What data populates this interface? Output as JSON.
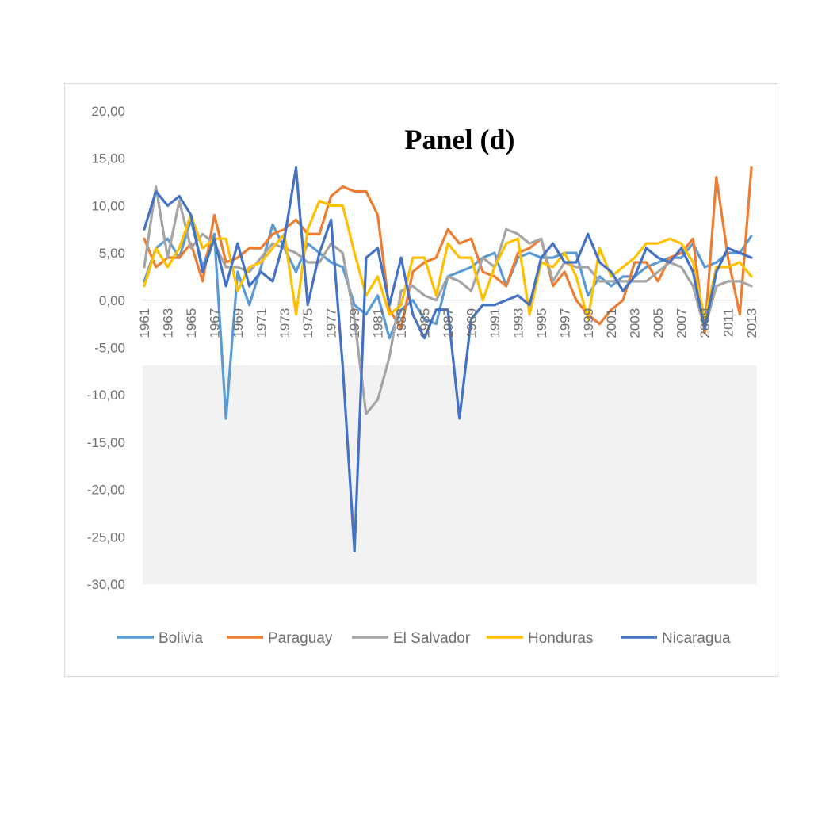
{
  "chart_data": {
    "type": "line",
    "title": "Panel (d)",
    "xlabel": "",
    "ylabel": "",
    "ylim": [
      -30,
      20
    ],
    "y_ticks": [
      "20,00",
      "15,00",
      "10,00",
      "5,00",
      "0,00",
      "-5,00",
      "-10,00",
      "-15,00",
      "-20,00",
      "-25,00",
      "-30,00"
    ],
    "y_tick_values": [
      20,
      15,
      10,
      5,
      0,
      -5,
      -10,
      -15,
      -20,
      -25,
      -30
    ],
    "x_tick_labels": [
      "1961",
      "1963",
      "1965",
      "1967",
      "1969",
      "1971",
      "1973",
      "1975",
      "1977",
      "1979",
      "1981",
      "1983",
      "1985",
      "1987",
      "1989",
      "1991",
      "1993",
      "1995",
      "1997",
      "1999",
      "2001",
      "2003",
      "2005",
      "2007",
      "2009",
      "2011",
      "2013"
    ],
    "x": [
      1961,
      1962,
      1963,
      1964,
      1965,
      1966,
      1967,
      1968,
      1969,
      1970,
      1971,
      1972,
      1973,
      1974,
      1975,
      1976,
      1977,
      1978,
      1979,
      1980,
      1981,
      1982,
      1983,
      1984,
      1985,
      1986,
      1987,
      1988,
      1989,
      1990,
      1991,
      1992,
      1993,
      1994,
      1995,
      1996,
      1997,
      1998,
      1999,
      2000,
      2001,
      2002,
      2003,
      2004,
      2005,
      2006,
      2007,
      2008,
      2009,
      2010,
      2011,
      2012,
      2013
    ],
    "grid": false,
    "legend_position": "bottom",
    "series": [
      {
        "name": "Bolivia",
        "color": "#5B9BD5",
        "values": [
          2.0,
          5.5,
          6.5,
          4.5,
          8.5,
          3.5,
          7.0,
          -12.5,
          3.0,
          -0.5,
          3.5,
          8.0,
          5.5,
          3.0,
          6.0,
          5.0,
          4.0,
          3.5,
          -0.5,
          -1.5,
          0.5,
          -4.0,
          -1.0,
          0.0,
          -2.0,
          -2.5,
          2.5,
          3.0,
          3.5,
          4.5,
          5.0,
          1.5,
          4.5,
          5.0,
          4.5,
          4.5,
          5.0,
          5.0,
          0.5,
          2.5,
          1.5,
          2.5,
          2.5,
          3.5,
          4.0,
          4.5,
          4.5,
          6.0,
          3.5,
          4.0,
          5.0,
          5.0,
          6.8
        ]
      },
      {
        "name": "Paraguay",
        "color": "#ED7D31",
        "values": [
          6.5,
          3.5,
          4.5,
          4.5,
          6.0,
          2.0,
          9.0,
          4.0,
          4.5,
          5.5,
          5.5,
          7.0,
          7.5,
          8.5,
          7.0,
          7.0,
          11.0,
          12.0,
          11.5,
          11.5,
          9.0,
          -1.0,
          -3.0,
          3.0,
          4.0,
          4.5,
          7.5,
          6.0,
          6.5,
          3.0,
          2.5,
          1.5,
          5.0,
          5.5,
          6.5,
          1.5,
          3.0,
          0.0,
          -1.5,
          -2.5,
          -1.0,
          0.0,
          4.0,
          4.0,
          2.0,
          4.5,
          5.0,
          6.5,
          -3.5,
          13.0,
          4.5,
          -1.5,
          14.0
        ]
      },
      {
        "name": "El Salvador",
        "color": "#A5A5A5",
        "values": [
          3.5,
          12.0,
          4.5,
          10.5,
          5.5,
          7.0,
          6.0,
          3.5,
          3.5,
          3.0,
          4.5,
          6.0,
          5.5,
          5.0,
          4.0,
          4.0,
          6.0,
          5.0,
          -2.0,
          -12.0,
          -10.5,
          -6.0,
          1.0,
          1.5,
          0.5,
          0.0,
          2.5,
          2.0,
          1.0,
          4.5,
          3.5,
          7.5,
          7.0,
          6.0,
          6.5,
          2.0,
          4.0,
          3.5,
          3.5,
          2.0,
          2.0,
          2.0,
          2.0,
          2.0,
          3.0,
          4.0,
          3.5,
          1.5,
          -3.0,
          1.5,
          2.0,
          2.0,
          1.5
        ]
      },
      {
        "name": "Honduras",
        "color": "#FFC000",
        "values": [
          1.5,
          5.5,
          3.5,
          5.5,
          9.0,
          5.5,
          6.5,
          6.5,
          1.0,
          3.5,
          4.0,
          5.5,
          7.0,
          -1.5,
          7.5,
          10.5,
          10.0,
          10.0,
          5.0,
          0.5,
          2.5,
          -1.5,
          -0.5,
          4.5,
          4.5,
          0.5,
          6.0,
          4.5,
          4.5,
          0.0,
          3.5,
          6.0,
          6.5,
          -1.5,
          4.0,
          3.5,
          5.0,
          2.5,
          -2.0,
          5.5,
          2.5,
          3.5,
          4.5,
          6.0,
          6.0,
          6.5,
          6.0,
          4.0,
          -2.0,
          3.5,
          3.5,
          4.0,
          2.5
        ]
      },
      {
        "name": "Nicaragua",
        "color": "#4472C4",
        "values": [
          7.5,
          11.5,
          10.0,
          11.0,
          9.0,
          3.0,
          6.5,
          1.5,
          6.0,
          1.5,
          3.0,
          2.0,
          6.5,
          14.0,
          -0.5,
          5.0,
          8.5,
          -7.0,
          -26.5,
          4.5,
          5.5,
          -0.5,
          4.5,
          -1.5,
          -4.0,
          -1.0,
          -1.0,
          -12.5,
          -2.0,
          -0.5,
          -0.5,
          0.0,
          0.5,
          -0.5,
          4.5,
          6.0,
          4.0,
          4.0,
          7.0,
          4.0,
          3.0,
          1.0,
          2.5,
          5.5,
          4.5,
          4.0,
          5.5,
          3.0,
          -3.0,
          3.0,
          5.5,
          5.0,
          4.5
        ]
      }
    ]
  }
}
